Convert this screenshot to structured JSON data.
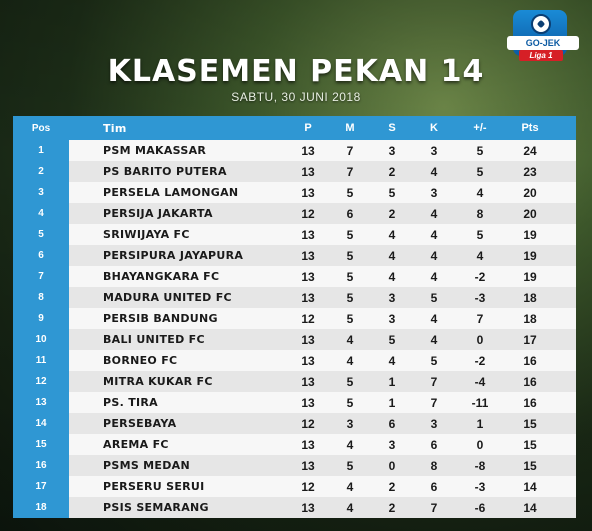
{
  "header": {
    "title": "KLASEMEN PEKAN 14",
    "subtitle": "SABTU, 30 JUNI 2018"
  },
  "logo": {
    "brand_text": "GO-JEK",
    "league_text": "Liga 1"
  },
  "table": {
    "columns": [
      "Pos",
      "Tim",
      "P",
      "M",
      "S",
      "K",
      "+/-",
      "Pts"
    ],
    "rows": [
      {
        "pos": "1",
        "team": "PSM MAKASSAR",
        "p": "13",
        "m": "7",
        "s": "3",
        "k": "3",
        "gd": "5",
        "pts": "24"
      },
      {
        "pos": "2",
        "team": "PS BARITO PUTERA",
        "p": "13",
        "m": "7",
        "s": "2",
        "k": "4",
        "gd": "5",
        "pts": "23"
      },
      {
        "pos": "3",
        "team": "PERSELA LAMONGAN",
        "p": "13",
        "m": "5",
        "s": "5",
        "k": "3",
        "gd": "4",
        "pts": "20"
      },
      {
        "pos": "4",
        "team": "PERSIJA JAKARTA",
        "p": "12",
        "m": "6",
        "s": "2",
        "k": "4",
        "gd": "8",
        "pts": "20"
      },
      {
        "pos": "5",
        "team": "SRIWIJAYA FC",
        "p": "13",
        "m": "5",
        "s": "4",
        "k": "4",
        "gd": "5",
        "pts": "19"
      },
      {
        "pos": "6",
        "team": "PERSIPURA JAYAPURA",
        "p": "13",
        "m": "5",
        "s": "4",
        "k": "4",
        "gd": "4",
        "pts": "19"
      },
      {
        "pos": "7",
        "team": "BHAYANGKARA FC",
        "p": "13",
        "m": "5",
        "s": "4",
        "k": "4",
        "gd": "-2",
        "pts": "19"
      },
      {
        "pos": "8",
        "team": "MADURA UNITED FC",
        "p": "13",
        "m": "5",
        "s": "3",
        "k": "5",
        "gd": "-3",
        "pts": "18"
      },
      {
        "pos": "9",
        "team": "PERSIB BANDUNG",
        "p": "12",
        "m": "5",
        "s": "3",
        "k": "4",
        "gd": "7",
        "pts": "18"
      },
      {
        "pos": "10",
        "team": "BALI UNITED FC",
        "p": "13",
        "m": "4",
        "s": "5",
        "k": "4",
        "gd": "0",
        "pts": "17"
      },
      {
        "pos": "11",
        "team": "BORNEO FC",
        "p": "13",
        "m": "4",
        "s": "4",
        "k": "5",
        "gd": "-2",
        "pts": "16"
      },
      {
        "pos": "12",
        "team": "MITRA KUKAR FC",
        "p": "13",
        "m": "5",
        "s": "1",
        "k": "7",
        "gd": "-4",
        "pts": "16"
      },
      {
        "pos": "13",
        "team": "PS. TIRA",
        "p": "13",
        "m": "5",
        "s": "1",
        "k": "7",
        "gd": "-11",
        "pts": "16"
      },
      {
        "pos": "14",
        "team": "PERSEBAYA",
        "p": "12",
        "m": "3",
        "s": "6",
        "k": "3",
        "gd": "1",
        "pts": "15"
      },
      {
        "pos": "15",
        "team": "AREMA FC",
        "p": "13",
        "m": "4",
        "s": "3",
        "k": "6",
        "gd": "0",
        "pts": "15"
      },
      {
        "pos": "16",
        "team": "PSMS MEDAN",
        "p": "13",
        "m": "5",
        "s": "0",
        "k": "8",
        "gd": "-8",
        "pts": "15"
      },
      {
        "pos": "17",
        "team": "PERSERU SERUI",
        "p": "12",
        "m": "4",
        "s": "2",
        "k": "6",
        "gd": "-3",
        "pts": "14"
      },
      {
        "pos": "18",
        "team": "PSIS SEMARANG",
        "p": "13",
        "m": "4",
        "s": "2",
        "k": "7",
        "gd": "-6",
        "pts": "14"
      }
    ]
  },
  "colors": {
    "accent": "#2f97d3",
    "row_light": "#f7f7f7",
    "row_dark": "#e6e6e6"
  }
}
